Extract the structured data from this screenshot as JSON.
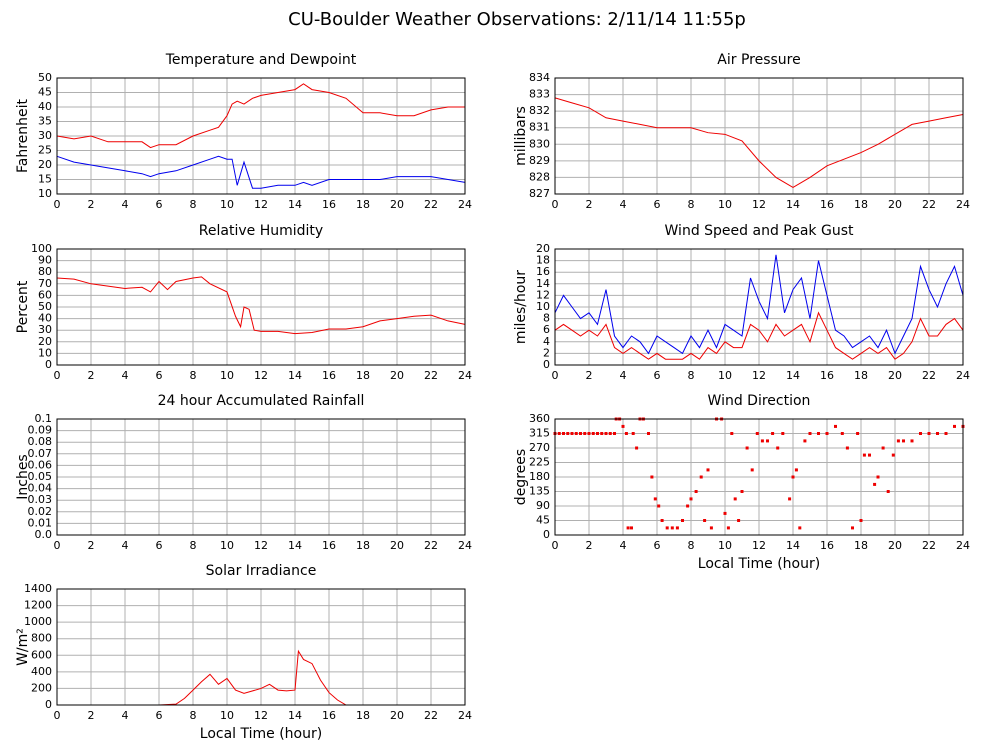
{
  "title": "CU-Boulder Weather Observations: 2/11/14 11:55p",
  "chart_data": [
    {
      "type": "line",
      "title": "Temperature and Dewpoint",
      "ylabel": "Fahrenheit",
      "x": [
        0,
        1,
        2,
        3,
        4,
        5,
        5.5,
        6,
        7,
        8,
        9,
        9.5,
        10,
        10.3,
        10.6,
        11,
        11.5,
        12,
        13,
        14,
        14.5,
        15,
        16,
        17,
        18,
        19,
        20,
        21,
        22,
        23,
        24
      ],
      "series": [
        {
          "color": "#ee0000",
          "values": [
            30,
            29,
            30,
            28,
            28,
            28,
            26,
            27,
            27,
            30,
            32,
            33,
            37,
            41,
            42,
            41,
            43,
            44,
            45,
            46,
            48,
            46,
            45,
            43,
            38,
            38,
            37,
            37,
            39,
            40,
            40
          ]
        },
        {
          "color": "#0000ee",
          "values": [
            23,
            21,
            20,
            19,
            18,
            17,
            16,
            17,
            18,
            20,
            22,
            23,
            22,
            22,
            13,
            21,
            12,
            12,
            13,
            13,
            14,
            13,
            15,
            15,
            15,
            15,
            16,
            16,
            16,
            15,
            14
          ]
        }
      ],
      "xlim": [
        0,
        24
      ],
      "xticks": [
        0,
        2,
        4,
        6,
        8,
        10,
        12,
        14,
        16,
        18,
        20,
        22,
        24
      ],
      "ylim": [
        10,
        50
      ],
      "yticks": [
        10,
        15,
        20,
        25,
        30,
        35,
        40,
        45,
        50
      ],
      "grid": true
    },
    {
      "type": "line",
      "title": "Air Pressure",
      "ylabel": "millibars",
      "x": [
        0,
        1,
        2,
        3,
        4,
        5,
        6,
        7,
        8,
        9,
        10,
        11,
        12,
        13,
        14,
        15,
        16,
        17,
        18,
        19,
        20,
        21,
        22,
        23,
        24
      ],
      "series": [
        {
          "color": "#ee0000",
          "values": [
            832.8,
            832.5,
            832.2,
            831.6,
            831.4,
            831.2,
            831.0,
            831.0,
            831.0,
            830.7,
            830.6,
            830.2,
            829.0,
            828.0,
            827.4,
            828.0,
            828.7,
            829.1,
            829.5,
            830.0,
            830.6,
            831.2,
            831.4,
            831.6,
            831.8
          ]
        }
      ],
      "xlim": [
        0,
        24
      ],
      "xticks": [
        0,
        2,
        4,
        6,
        8,
        10,
        12,
        14,
        16,
        18,
        20,
        22,
        24
      ],
      "ylim": [
        827,
        834
      ],
      "yticks": [
        827,
        828,
        829,
        830,
        831,
        832,
        833,
        834
      ],
      "grid": true
    },
    {
      "type": "line",
      "title": "Relative Humidity",
      "ylabel": "Percent",
      "x": [
        0,
        1,
        2,
        3,
        4,
        5,
        5.5,
        6,
        6.5,
        7,
        8,
        8.5,
        9,
        10,
        10.5,
        10.8,
        11,
        11.3,
        11.6,
        12,
        13,
        14,
        15,
        16,
        17,
        18,
        19,
        20,
        21,
        22,
        23,
        24
      ],
      "series": [
        {
          "color": "#ee0000",
          "values": [
            75,
            74,
            70,
            68,
            66,
            67,
            63,
            72,
            65,
            72,
            75,
            76,
            70,
            63,
            42,
            33,
            50,
            48,
            30,
            29,
            29,
            27,
            28,
            31,
            31,
            33,
            38,
            40,
            42,
            43,
            38,
            35
          ]
        }
      ],
      "xlim": [
        0,
        24
      ],
      "xticks": [
        0,
        2,
        4,
        6,
        8,
        10,
        12,
        14,
        16,
        18,
        20,
        22,
        24
      ],
      "ylim": [
        0,
        100
      ],
      "yticks": [
        0,
        10,
        20,
        30,
        40,
        50,
        60,
        70,
        80,
        90,
        100
      ],
      "grid": true
    },
    {
      "type": "line",
      "title": "Wind Speed and Peak Gust",
      "ylabel": "miles/hour",
      "x": [
        0,
        0.5,
        1,
        1.5,
        2,
        2.5,
        3,
        3.5,
        4,
        4.5,
        5,
        5.5,
        6,
        6.5,
        7,
        7.5,
        8,
        8.5,
        9,
        9.5,
        10,
        10.5,
        11,
        11.5,
        12,
        12.5,
        13,
        13.5,
        14,
        14.5,
        15,
        15.5,
        16,
        16.5,
        17,
        17.5,
        18,
        18.5,
        19,
        19.5,
        20,
        20.5,
        21,
        21.5,
        22,
        22.5,
        23,
        23.5,
        24
      ],
      "series": [
        {
          "color": "#0000ee",
          "values": [
            9,
            12,
            10,
            8,
            9,
            7,
            13,
            5,
            3,
            5,
            4,
            2,
            5,
            4,
            3,
            2,
            5,
            3,
            6,
            3,
            7,
            6,
            5,
            15,
            11,
            8,
            19,
            9,
            13,
            15,
            8,
            18,
            12,
            6,
            5,
            3,
            4,
            5,
            3,
            6,
            2,
            5,
            8,
            17,
            13,
            10,
            14,
            17,
            12
          ]
        },
        {
          "color": "#ee0000",
          "values": [
            6,
            7,
            6,
            5,
            6,
            5,
            7,
            3,
            2,
            3,
            2,
            1,
            2,
            1,
            1,
            1,
            2,
            1,
            3,
            2,
            4,
            3,
            3,
            7,
            6,
            4,
            7,
            5,
            6,
            7,
            4,
            9,
            6,
            3,
            2,
            1,
            2,
            3,
            2,
            3,
            1,
            2,
            4,
            8,
            5,
            5,
            7,
            8,
            6
          ]
        }
      ],
      "xlim": [
        0,
        24
      ],
      "xticks": [
        0,
        2,
        4,
        6,
        8,
        10,
        12,
        14,
        16,
        18,
        20,
        22,
        24
      ],
      "ylim": [
        0,
        20
      ],
      "yticks": [
        0,
        2,
        4,
        6,
        8,
        10,
        12,
        14,
        16,
        18,
        20
      ],
      "grid": true
    },
    {
      "type": "line",
      "title": "24 hour Accumulated Rainfall",
      "ylabel": "Inches",
      "x": [
        0,
        24
      ],
      "series": [
        {
          "color": "#ee0000",
          "values": [
            0,
            0
          ]
        }
      ],
      "xlim": [
        0,
        24
      ],
      "xticks": [
        0,
        2,
        4,
        6,
        8,
        10,
        12,
        14,
        16,
        18,
        20,
        22,
        24
      ],
      "ylim": [
        0,
        0.1
      ],
      "yticks": [
        {
          "value": 0,
          "label": "0.0"
        },
        0.01,
        0.02,
        0.03,
        0.04,
        0.05,
        0.06,
        0.07,
        0.08,
        0.09,
        0.1
      ],
      "grid": true
    },
    {
      "type": "scatter",
      "title": "Wind Direction",
      "ylabel": "degrees",
      "xlabel": "Local Time (hour)",
      "color": "#ee0000",
      "x": [
        0,
        0.25,
        0.5,
        0.75,
        1,
        1.25,
        1.5,
        1.75,
        2,
        2.25,
        2.5,
        2.75,
        3,
        3.25,
        3.5,
        3.6,
        3.8,
        4,
        4.2,
        4.3,
        4.5,
        4.6,
        4.8,
        5,
        5.2,
        5.5,
        5.7,
        5.9,
        6.1,
        6.3,
        6.6,
        6.9,
        7.2,
        7.5,
        7.8,
        8,
        8.3,
        8.6,
        8.8,
        9,
        9.2,
        9.5,
        9.8,
        10,
        10.2,
        10.4,
        10.6,
        10.8,
        11,
        11.3,
        11.6,
        11.9,
        12.2,
        12.5,
        12.8,
        13.1,
        13.4,
        13.8,
        14,
        14.2,
        14.4,
        14.7,
        15,
        15.5,
        16,
        16.5,
        16.9,
        17.2,
        17.5,
        17.8,
        18,
        18.2,
        18.5,
        18.8,
        19,
        19.3,
        19.6,
        19.9,
        20.2,
        20.5,
        21,
        21.5,
        22,
        22.5,
        23,
        23.5,
        24
      ],
      "values": [
        315,
        315,
        315,
        315,
        315,
        315,
        315,
        315,
        315,
        315,
        315,
        315,
        315,
        315,
        315,
        360,
        360,
        337,
        315,
        22,
        22,
        315,
        270,
        360,
        360,
        315,
        180,
        112,
        90,
        45,
        22,
        22,
        22,
        45,
        90,
        112,
        135,
        180,
        45,
        202,
        22,
        360,
        360,
        67,
        22,
        315,
        112,
        45,
        135,
        270,
        202,
        315,
        292,
        292,
        315,
        270,
        315,
        112,
        180,
        202,
        22,
        292,
        315,
        315,
        315,
        337,
        315,
        270,
        22,
        315,
        45,
        248,
        248,
        157,
        180,
        270,
        135,
        248,
        292,
        292,
        292,
        315,
        315,
        315,
        315,
        337,
        337
      ],
      "xlim": [
        0,
        24
      ],
      "xticks": [
        0,
        2,
        4,
        6,
        8,
        10,
        12,
        14,
        16,
        18,
        20,
        22,
        24
      ],
      "ylim": [
        0,
        360
      ],
      "yticks": [
        0,
        45,
        90,
        135,
        180,
        225,
        270,
        315,
        360
      ],
      "grid": true
    },
    {
      "type": "line",
      "title": "Solar Irradiance",
      "ylabel": "W/m²",
      "xlabel": "Local Time (hour)",
      "x": [
        0,
        6,
        7,
        7.5,
        8,
        8.5,
        9,
        9.5,
        10,
        10.5,
        11,
        12,
        12.5,
        13,
        13.5,
        14,
        14.2,
        14.5,
        15,
        15.5,
        16,
        16.5,
        17,
        24
      ],
      "series": [
        {
          "color": "#ee0000",
          "values": [
            0,
            0,
            10,
            80,
            180,
            280,
            370,
            250,
            320,
            180,
            140,
            200,
            250,
            180,
            170,
            180,
            650,
            550,
            500,
            300,
            150,
            60,
            0,
            0
          ]
        }
      ],
      "xlim": [
        0,
        24
      ],
      "xticks": [
        0,
        2,
        4,
        6,
        8,
        10,
        12,
        14,
        16,
        18,
        20,
        22,
        24
      ],
      "ylim": [
        0,
        1400
      ],
      "yticks": [
        0,
        200,
        400,
        600,
        800,
        1000,
        1200,
        1400
      ],
      "grid": true
    }
  ]
}
